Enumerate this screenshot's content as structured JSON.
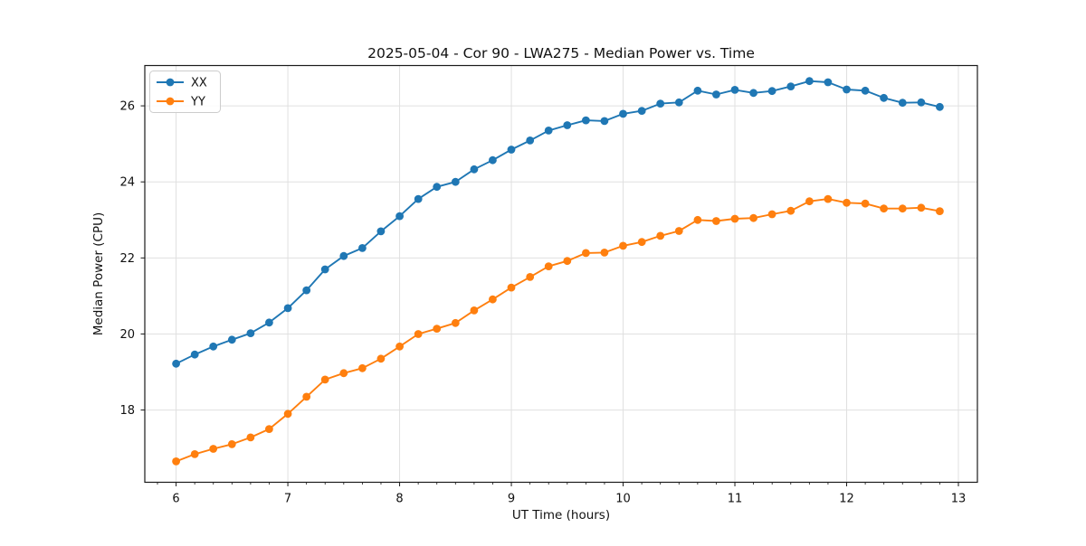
{
  "chart_data": {
    "type": "line",
    "title": "2025-05-04 - Cor 90 - LWA275 - Median Power vs. Time",
    "xlabel": "UT Time (hours)",
    "ylabel": "Median Power (CPU)",
    "xlim": [
      5.72,
      13.17
    ],
    "ylim": [
      16.1,
      27.06
    ],
    "xticks": [
      6,
      7,
      8,
      9,
      10,
      11,
      12,
      13
    ],
    "yticks": [
      18,
      20,
      22,
      24,
      26
    ],
    "x_minor_step_hours": 0.1667,
    "grid": true,
    "grid_color": "#e0e0e0",
    "legend": {
      "position": "upper left"
    },
    "x": [
      6.0,
      6.167,
      6.333,
      6.5,
      6.667,
      6.833,
      7.0,
      7.167,
      7.333,
      7.5,
      7.667,
      7.833,
      8.0,
      8.167,
      8.333,
      8.5,
      8.667,
      8.833,
      9.0,
      9.167,
      9.333,
      9.5,
      9.667,
      9.833,
      10.0,
      10.167,
      10.333,
      10.5,
      10.667,
      10.833,
      11.0,
      11.167,
      11.333,
      11.5,
      11.667,
      11.833,
      12.0,
      12.167,
      12.333,
      12.5,
      12.667,
      12.833
    ],
    "series": [
      {
        "name": "XX",
        "color": "#1f77b4",
        "marker": "o",
        "values": [
          19.22,
          19.46,
          19.67,
          19.85,
          20.02,
          20.3,
          20.68,
          21.15,
          21.7,
          22.05,
          22.26,
          22.7,
          23.1,
          23.55,
          23.87,
          24.0,
          24.33,
          24.57,
          24.85,
          25.09,
          25.35,
          25.49,
          25.62,
          25.6,
          25.79,
          25.87,
          26.06,
          26.09,
          26.4,
          26.3,
          26.42,
          26.34,
          26.39,
          26.51,
          26.65,
          26.62,
          26.43,
          26.4,
          26.21,
          26.08,
          26.09,
          25.97
        ]
      },
      {
        "name": "YY",
        "color": "#ff7f0e",
        "marker": "o",
        "values": [
          16.65,
          16.84,
          16.98,
          17.1,
          17.28,
          17.5,
          17.9,
          18.35,
          18.8,
          18.97,
          19.1,
          19.35,
          19.67,
          20.0,
          20.14,
          20.29,
          20.62,
          20.91,
          21.22,
          21.5,
          21.78,
          21.92,
          22.13,
          22.14,
          22.32,
          22.42,
          22.58,
          22.71,
          23.0,
          22.97,
          23.03,
          23.05,
          23.15,
          23.24,
          23.49,
          23.55,
          23.45,
          23.43,
          23.3,
          23.3,
          23.32,
          23.23
        ]
      }
    ]
  }
}
